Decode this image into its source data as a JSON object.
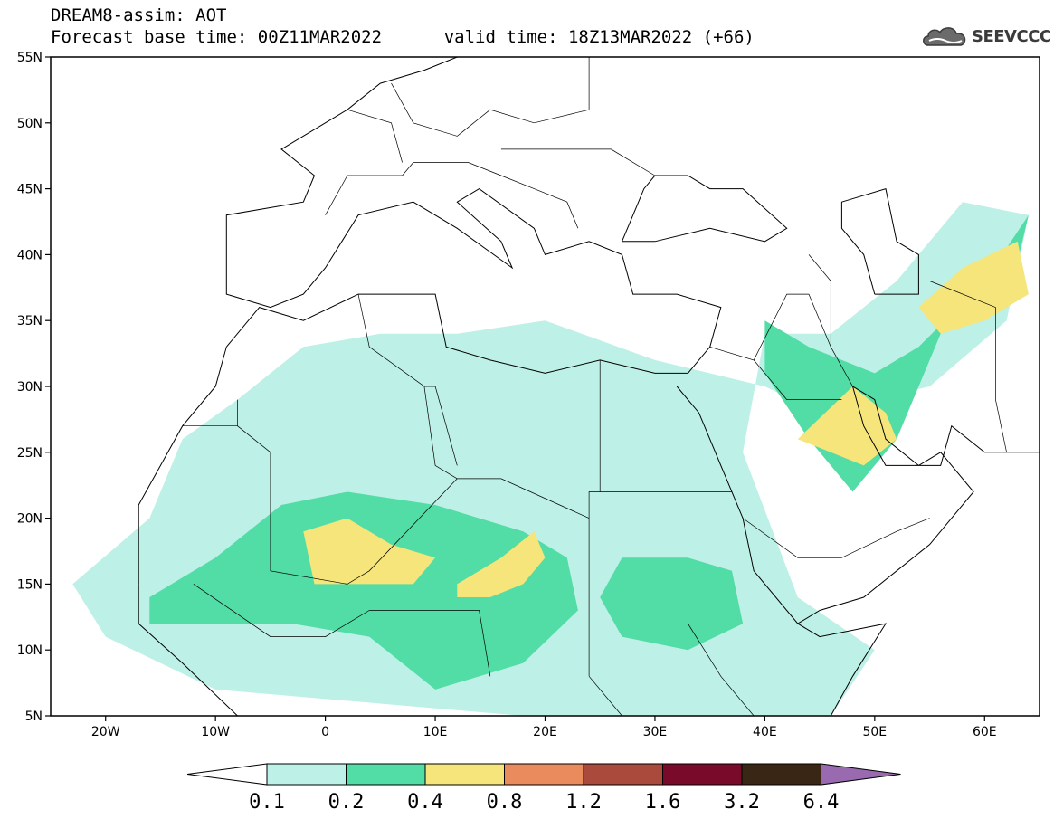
{
  "header": {
    "title_line1": "DREAM8-assim: AOT",
    "base_time_label": "Forecast base time: 00Z11MAR2022",
    "valid_time_label": "valid time: 18Z13MAR2022 (+66)"
  },
  "logo": {
    "text": "SEEVCCC",
    "icon": "cloud-icon"
  },
  "map": {
    "lon_range": [
      -25,
      65
    ],
    "lat_range": [
      5,
      55
    ],
    "lat_ticks": [
      {
        "value": 55,
        "label": "55N"
      },
      {
        "value": 50,
        "label": "50N"
      },
      {
        "value": 45,
        "label": "45N"
      },
      {
        "value": 40,
        "label": "40N"
      },
      {
        "value": 35,
        "label": "35N"
      },
      {
        "value": 30,
        "label": "30N"
      },
      {
        "value": 25,
        "label": "25N"
      },
      {
        "value": 20,
        "label": "20N"
      },
      {
        "value": 15,
        "label": "15N"
      },
      {
        "value": 10,
        "label": "10N"
      },
      {
        "value": 5,
        "label": "5N"
      }
    ],
    "lon_ticks": [
      {
        "value": -20,
        "label": "20W"
      },
      {
        "value": -10,
        "label": "10W"
      },
      {
        "value": 0,
        "label": "0"
      },
      {
        "value": 10,
        "label": "10E"
      },
      {
        "value": 20,
        "label": "20E"
      },
      {
        "value": 30,
        "label": "30E"
      },
      {
        "value": 40,
        "label": "40E"
      },
      {
        "value": 50,
        "label": "50E"
      },
      {
        "value": 60,
        "label": "60E"
      }
    ],
    "background": "#ffffff",
    "boundary_color": "#000000"
  },
  "colorbar": {
    "levels": [
      "0.1",
      "0.2",
      "0.4",
      "0.8",
      "1.2",
      "1.6",
      "3.2",
      "6.4"
    ],
    "colors": [
      "#bdf0e6",
      "#52dca6",
      "#f5e57a",
      "#e98b5d",
      "#a94a3c",
      "#7a0a2a",
      "#3a2614"
    ],
    "under_color": "#ffffff",
    "over_color": "#9a6ab0"
  },
  "chart_data": {
    "type": "heatmap",
    "variable": "AOT",
    "x_range": [
      -25,
      65
    ],
    "y_range": [
      5,
      55
    ],
    "regions": [
      {
        "level": "0.1-0.2",
        "lon_lat": [
          [
            -23,
            15
          ],
          [
            -16,
            20
          ],
          [
            -13,
            26
          ],
          [
            -8,
            29
          ],
          [
            -2,
            33
          ],
          [
            5,
            34
          ],
          [
            12,
            34
          ],
          [
            20,
            35
          ],
          [
            30,
            32
          ],
          [
            40,
            30
          ],
          [
            45,
            28
          ],
          [
            55,
            30
          ],
          [
            62,
            35
          ],
          [
            64,
            43
          ],
          [
            58,
            44
          ],
          [
            52,
            38
          ],
          [
            46,
            34
          ],
          [
            40,
            34
          ],
          [
            38,
            25
          ],
          [
            43,
            14
          ],
          [
            50,
            10
          ],
          [
            46,
            5
          ],
          [
            18,
            5
          ],
          [
            -10,
            7
          ],
          [
            -20,
            11
          ]
        ]
      },
      {
        "level": "0.2-0.4",
        "lon_lat": [
          [
            -16,
            14
          ],
          [
            -10,
            17
          ],
          [
            -4,
            21
          ],
          [
            2,
            22
          ],
          [
            10,
            21
          ],
          [
            18,
            19
          ],
          [
            22,
            17
          ],
          [
            23,
            13
          ],
          [
            18,
            9
          ],
          [
            10,
            7
          ],
          [
            4,
            11
          ],
          [
            -3,
            12
          ],
          [
            -10,
            12
          ],
          [
            -16,
            12
          ]
        ]
      },
      {
        "level": "0.2-0.4",
        "lon_lat": [
          [
            33,
            17
          ],
          [
            37,
            16
          ],
          [
            38,
            12
          ],
          [
            33,
            10
          ],
          [
            27,
            11
          ],
          [
            25,
            14
          ],
          [
            27,
            17
          ]
        ]
      },
      {
        "level": "0.2-0.4",
        "lon_lat": [
          [
            40,
            35
          ],
          [
            44,
            33
          ],
          [
            50,
            31
          ],
          [
            54,
            33
          ],
          [
            60,
            38
          ],
          [
            64,
            43
          ],
          [
            62,
            36
          ],
          [
            56,
            34
          ],
          [
            52,
            26
          ],
          [
            48,
            22
          ],
          [
            44,
            26
          ],
          [
            40,
            31
          ]
        ]
      },
      {
        "level": "0.4-0.8",
        "lon_lat": [
          [
            -2,
            19
          ],
          [
            2,
            20
          ],
          [
            6,
            18
          ],
          [
            10,
            17
          ],
          [
            8,
            15
          ],
          [
            3,
            15
          ],
          [
            -1,
            15
          ]
        ]
      },
      {
        "level": "0.4-0.8",
        "lon_lat": [
          [
            12,
            15
          ],
          [
            16,
            17
          ],
          [
            19,
            19
          ],
          [
            20,
            17
          ],
          [
            18,
            15
          ],
          [
            15,
            14
          ],
          [
            12,
            14
          ]
        ]
      },
      {
        "level": "0.4-0.8",
        "lon_lat": [
          [
            43,
            26
          ],
          [
            48,
            30
          ],
          [
            51,
            28
          ],
          [
            52,
            26
          ],
          [
            49,
            24
          ],
          [
            46,
            25
          ]
        ]
      },
      {
        "level": "0.4-0.8",
        "lon_lat": [
          [
            54,
            36
          ],
          [
            58,
            39
          ],
          [
            63,
            41
          ],
          [
            64,
            37
          ],
          [
            60,
            35
          ],
          [
            56,
            34
          ]
        ]
      }
    ]
  }
}
